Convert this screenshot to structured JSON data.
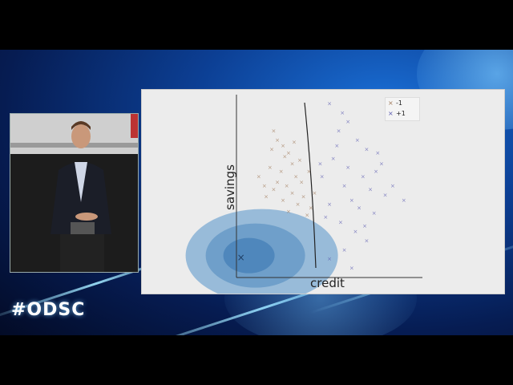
{
  "brand": {
    "logo_text": "#ODSC"
  },
  "slide": {
    "ylabel": "savings",
    "xlabel": "credit",
    "legend": [
      {
        "label": "-1",
        "marker": "×",
        "color": "#a07a5a"
      },
      {
        "label": "+1",
        "marker": "×",
        "color": "#5a5ab0"
      }
    ]
  },
  "chart_data": {
    "type": "scatter",
    "title": "",
    "xlabel": "credit",
    "ylabel": "savings",
    "series": [
      {
        "name": "-1",
        "color": "#a07a5a",
        "marker": "x",
        "points": [
          [
            0.2,
            0.8
          ],
          [
            0.22,
            0.75
          ],
          [
            0.25,
            0.72
          ],
          [
            0.28,
            0.68
          ],
          [
            0.3,
            0.62
          ],
          [
            0.18,
            0.6
          ],
          [
            0.24,
            0.58
          ],
          [
            0.32,
            0.55
          ],
          [
            0.35,
            0.52
          ],
          [
            0.27,
            0.5
          ],
          [
            0.2,
            0.48
          ],
          [
            0.3,
            0.46
          ],
          [
            0.36,
            0.44
          ],
          [
            0.25,
            0.42
          ],
          [
            0.33,
            0.4
          ],
          [
            0.4,
            0.38
          ],
          [
            0.28,
            0.36
          ],
          [
            0.38,
            0.34
          ],
          [
            0.22,
            0.52
          ],
          [
            0.15,
            0.5
          ],
          [
            0.42,
            0.46
          ],
          [
            0.12,
            0.55
          ],
          [
            0.34,
            0.64
          ],
          [
            0.26,
            0.66
          ],
          [
            0.39,
            0.58
          ],
          [
            0.31,
            0.74
          ],
          [
            0.16,
            0.44
          ],
          [
            0.19,
            0.7
          ]
        ]
      },
      {
        "name": "+1",
        "color": "#5a5ab0",
        "marker": "x",
        "points": [
          [
            0.5,
            0.95
          ],
          [
            0.6,
            0.85
          ],
          [
            0.55,
            0.8
          ],
          [
            0.65,
            0.75
          ],
          [
            0.7,
            0.7
          ],
          [
            0.52,
            0.65
          ],
          [
            0.6,
            0.6
          ],
          [
            0.75,
            0.58
          ],
          [
            0.68,
            0.55
          ],
          [
            0.58,
            0.5
          ],
          [
            0.72,
            0.48
          ],
          [
            0.8,
            0.45
          ],
          [
            0.62,
            0.42
          ],
          [
            0.5,
            0.4
          ],
          [
            0.66,
            0.38
          ],
          [
            0.74,
            0.35
          ],
          [
            0.56,
            0.3
          ],
          [
            0.64,
            0.25
          ],
          [
            0.7,
            0.2
          ],
          [
            0.58,
            0.15
          ],
          [
            0.5,
            0.1
          ],
          [
            0.62,
            0.05
          ],
          [
            0.78,
            0.62
          ],
          [
            0.54,
            0.72
          ],
          [
            0.46,
            0.55
          ],
          [
            0.84,
            0.5
          ],
          [
            0.48,
            0.33
          ],
          [
            0.69,
            0.28
          ],
          [
            0.9,
            0.42
          ],
          [
            0.45,
            0.62
          ],
          [
            0.76,
            0.68
          ],
          [
            0.57,
            0.9
          ]
        ]
      }
    ],
    "decision_boundary": "curved line near credit≈0.35",
    "density_regions": "blue gaussian contours centered at lower-left",
    "legend_position": "top-right",
    "grid": false
  }
}
